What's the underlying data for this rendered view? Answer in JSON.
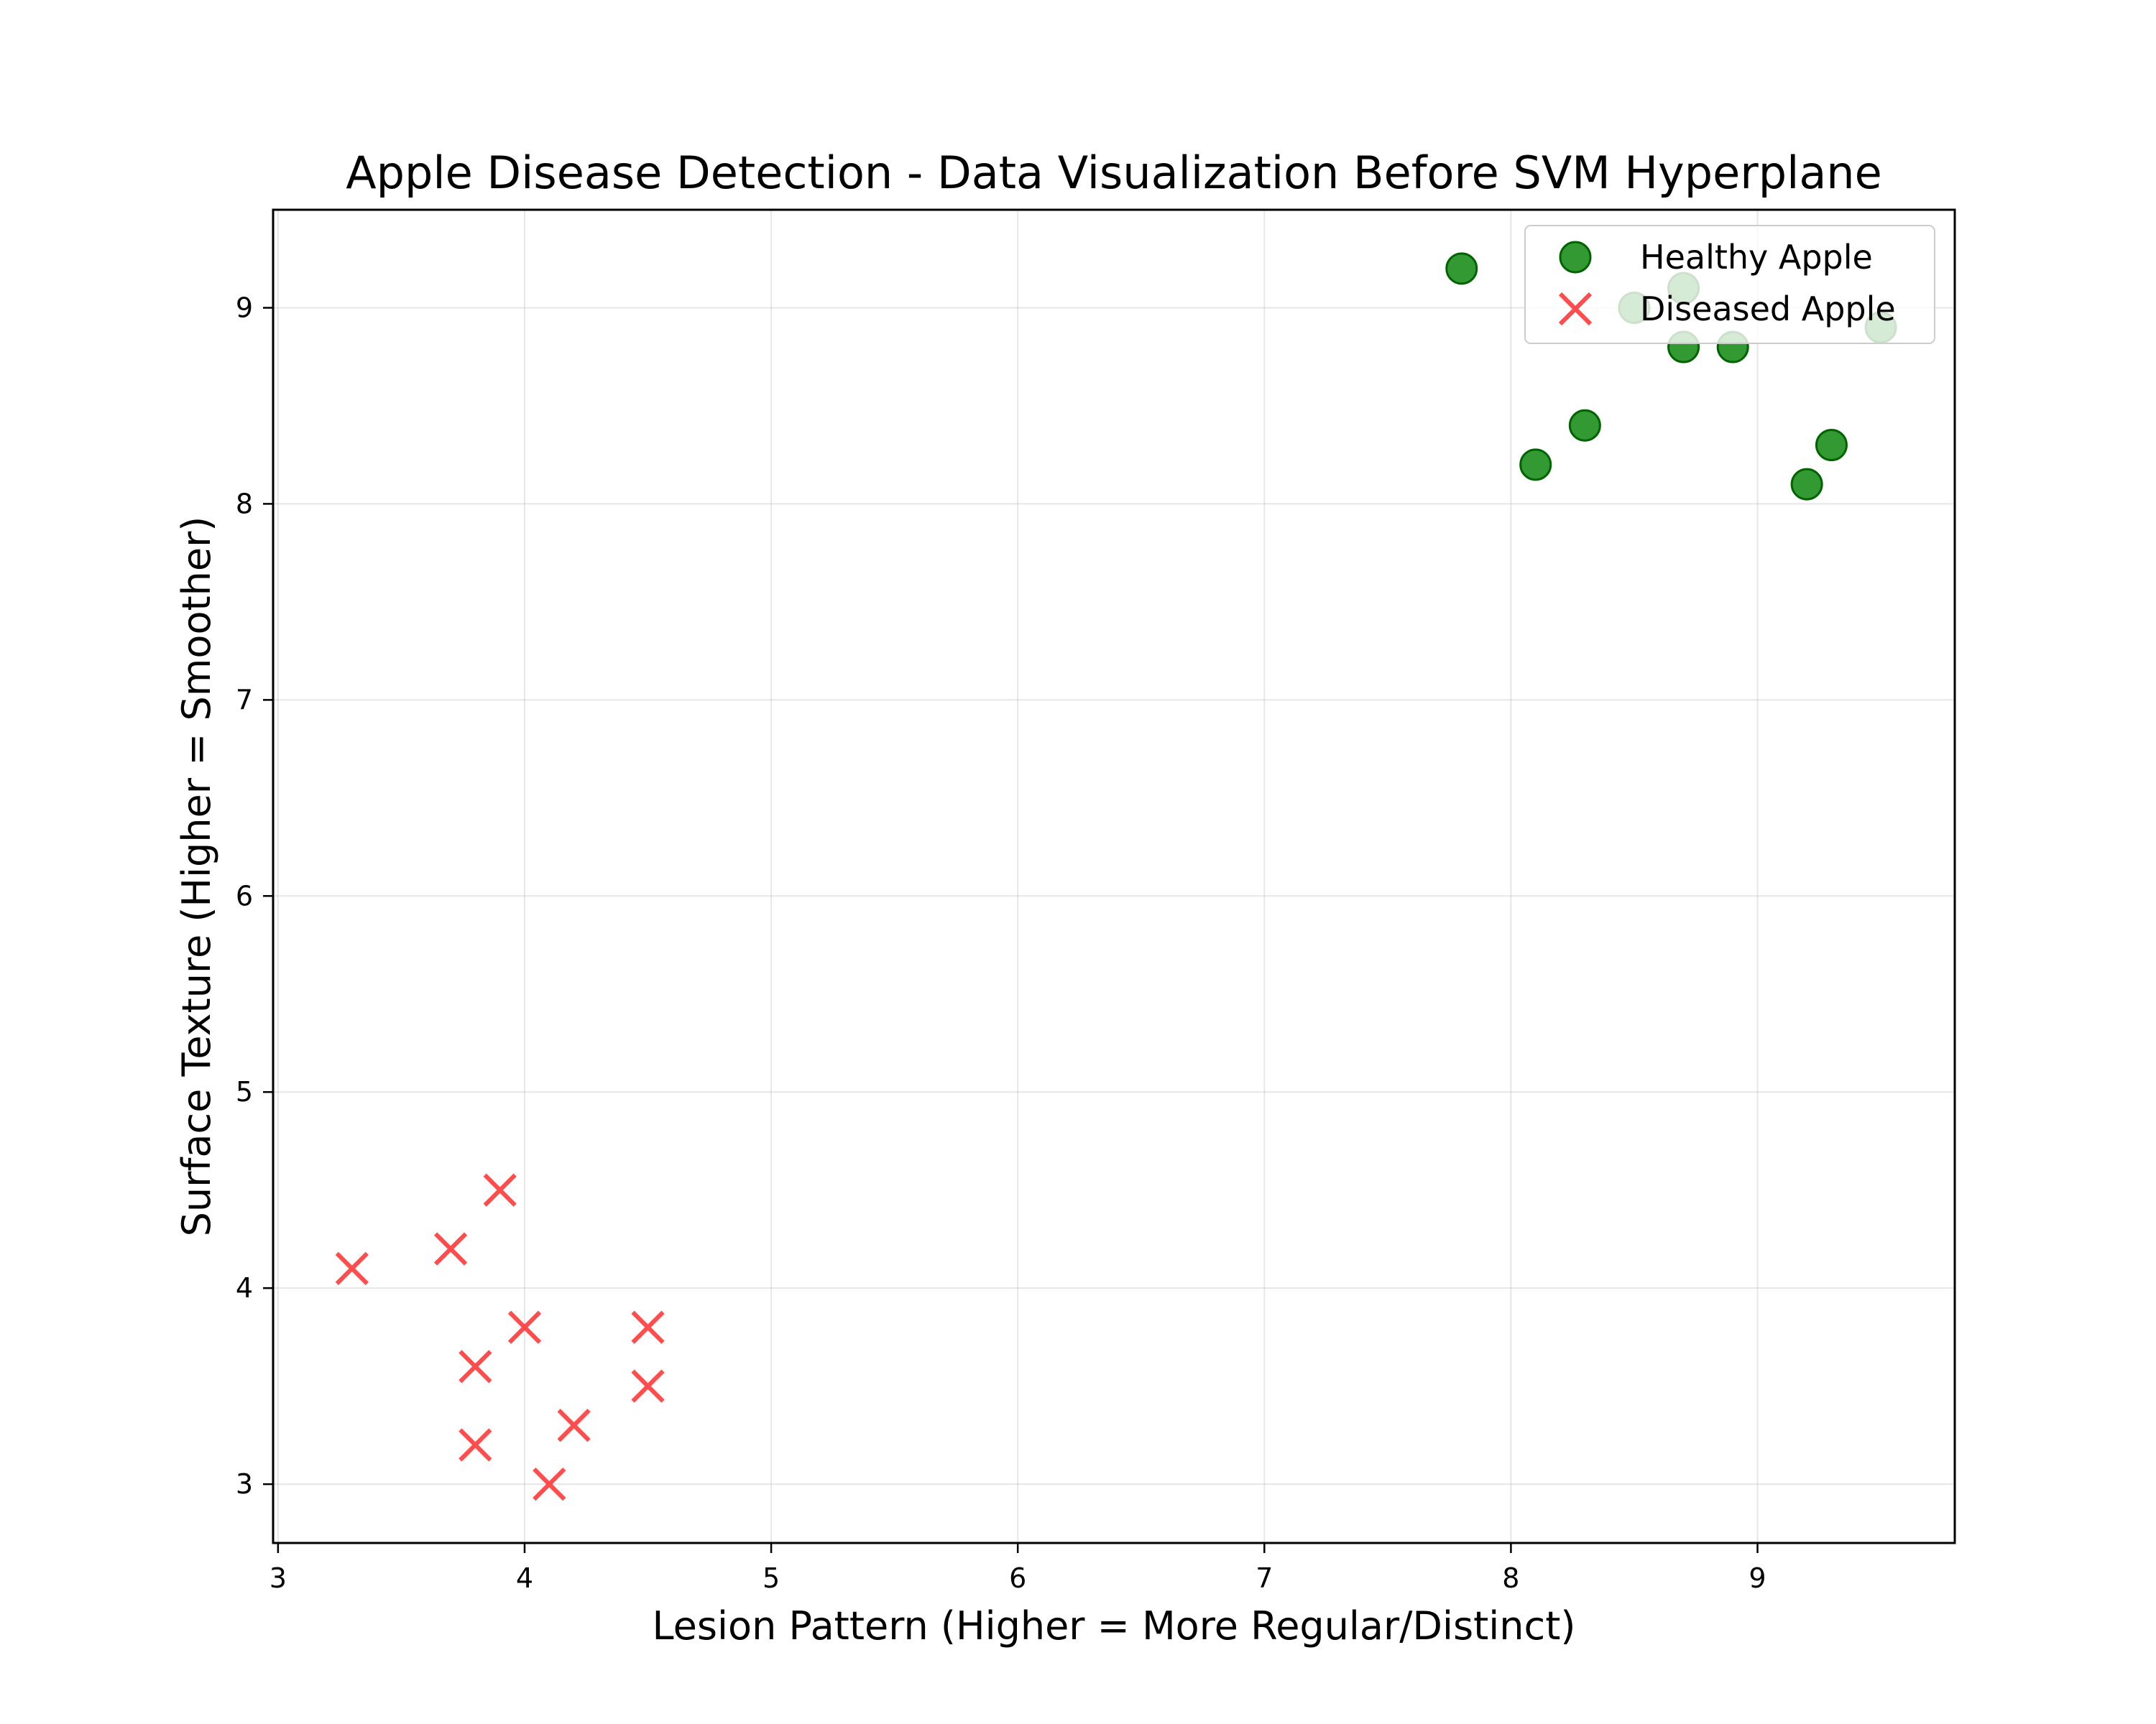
{
  "chart_data": {
    "type": "scatter",
    "title": "Apple Disease Detection - Data Visualization Before SVM Hyperplane",
    "xlabel": "Lesion Pattern (Higher = More Regular/Distinct)",
    "ylabel": "Surface Texture (Higher = Smoother)",
    "xlim": [
      2.98,
      9.8
    ],
    "ylim": [
      2.7,
      9.5
    ],
    "xticks": [
      3,
      4,
      5,
      6,
      7,
      8,
      9
    ],
    "yticks": [
      3,
      4,
      5,
      6,
      7,
      8,
      9
    ],
    "grid": true,
    "legend_position": "top-right",
    "series": [
      {
        "name": "Healthy Apple",
        "marker": "circle",
        "color": "#008000",
        "points": [
          {
            "x": 7.8,
            "y": 9.2
          },
          {
            "x": 8.1,
            "y": 8.2
          },
          {
            "x": 8.3,
            "y": 8.4
          },
          {
            "x": 8.5,
            "y": 9.0
          },
          {
            "x": 8.7,
            "y": 9.1
          },
          {
            "x": 8.7,
            "y": 8.8
          },
          {
            "x": 8.9,
            "y": 8.8
          },
          {
            "x": 9.2,
            "y": 8.1
          },
          {
            "x": 9.3,
            "y": 8.3
          },
          {
            "x": 9.5,
            "y": 8.9
          }
        ]
      },
      {
        "name": "Diseased Apple",
        "marker": "x",
        "color": "#ff2020",
        "points": [
          {
            "x": 3.3,
            "y": 4.1
          },
          {
            "x": 3.7,
            "y": 4.2
          },
          {
            "x": 3.9,
            "y": 4.5
          },
          {
            "x": 4.0,
            "y": 3.8
          },
          {
            "x": 3.8,
            "y": 3.6
          },
          {
            "x": 3.8,
            "y": 3.2
          },
          {
            "x": 4.1,
            "y": 3.0
          },
          {
            "x": 4.2,
            "y": 3.3
          },
          {
            "x": 4.5,
            "y": 3.8
          },
          {
            "x": 4.5,
            "y": 3.5
          }
        ]
      }
    ]
  }
}
